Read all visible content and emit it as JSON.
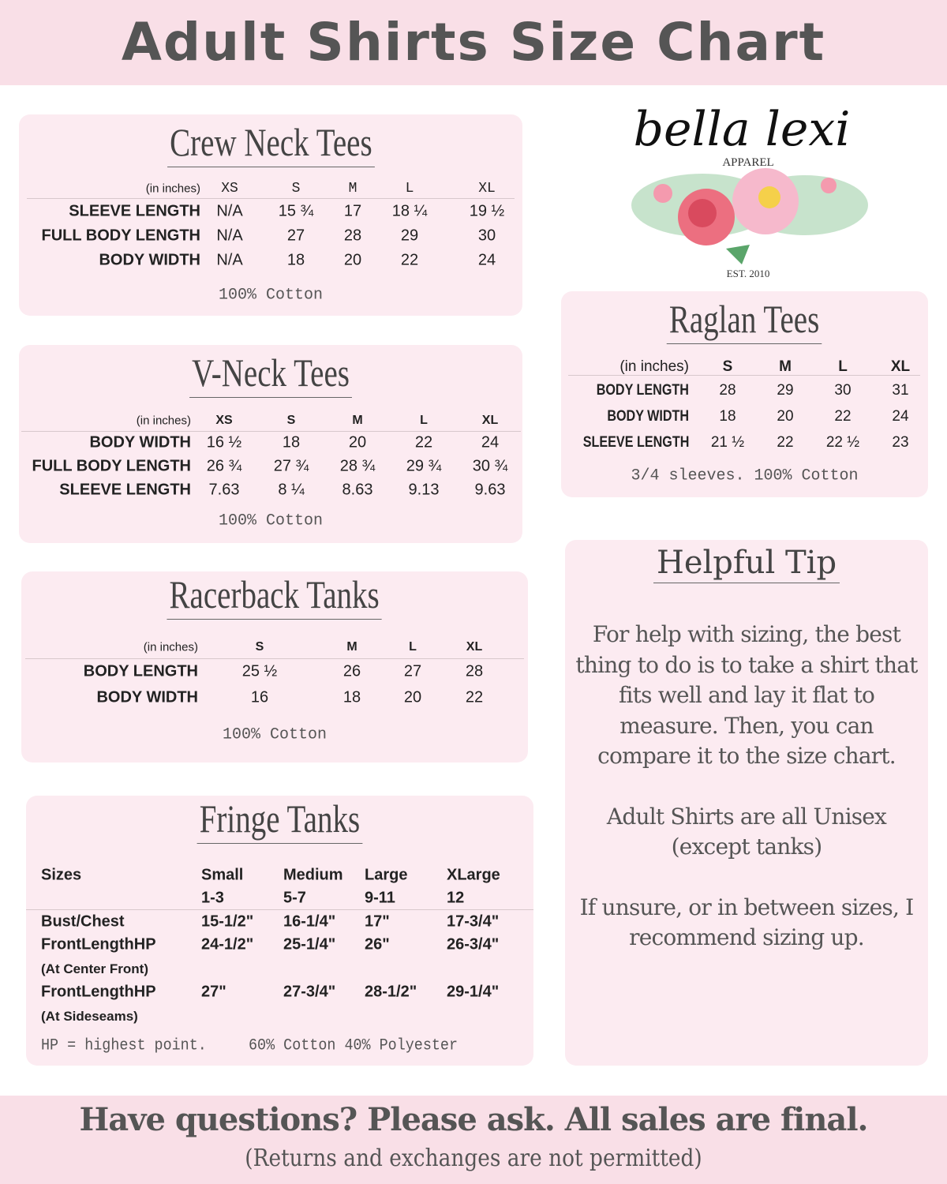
{
  "header": {
    "title": "Adult Shirts Size Chart"
  },
  "logo": {
    "brand": "bella lexi",
    "sub": "APPAREL",
    "est": "EST. 2010"
  },
  "crew": {
    "title": "Crew Neck Tees",
    "unit": "(in inches)",
    "sizes": [
      "XS",
      "S",
      "M",
      "L",
      "XL"
    ],
    "rows": [
      {
        "label": "SLEEVE LENGTH",
        "values": [
          "N/A",
          "15 ¾",
          "17",
          "18 ¼",
          "19 ½"
        ]
      },
      {
        "label": "FULL BODY LENGTH",
        "values": [
          "N/A",
          "27",
          "28",
          "29",
          "30"
        ]
      },
      {
        "label": "BODY WIDTH",
        "values": [
          "N/A",
          "18",
          "20",
          "22",
          "24"
        ]
      }
    ],
    "note": "100% Cotton"
  },
  "vneck": {
    "title": "V-Neck Tees",
    "unit": "(in inches)",
    "sizes": [
      "XS",
      "S",
      "M",
      "L",
      "XL"
    ],
    "rows": [
      {
        "label": "BODY WIDTH",
        "values": [
          "16 ½",
          "18",
          "20",
          "22",
          "24"
        ]
      },
      {
        "label": "FULL BODY LENGTH",
        "values": [
          "26 ¾",
          "27 ¾",
          "28 ¾",
          "29 ¾",
          "30 ¾"
        ]
      },
      {
        "label": "SLEEVE LENGTH",
        "values": [
          "7.63",
          "8 ¼",
          "8.63",
          "9.13",
          "9.63"
        ]
      }
    ],
    "note": "100% Cotton"
  },
  "racer": {
    "title": "Racerback Tanks",
    "unit": "(in inches)",
    "sizes": [
      "S",
      "M",
      "L",
      "XL"
    ],
    "rows": [
      {
        "label": "BODY LENGTH",
        "values": [
          "25 ½",
          "26",
          "27",
          "28"
        ]
      },
      {
        "label": "BODY WIDTH",
        "values": [
          "16",
          "18",
          "20",
          "22"
        ]
      }
    ],
    "note": "100% Cotton"
  },
  "raglan": {
    "title": "Raglan Tees",
    "unit": "(in inches)",
    "sizes": [
      "S",
      "M",
      "L",
      "XL"
    ],
    "rows": [
      {
        "label": "BODY LENGTH",
        "values": [
          "28",
          "29",
          "30",
          "31"
        ]
      },
      {
        "label": "BODY WIDTH",
        "values": [
          "18",
          "20",
          "22",
          "24"
        ]
      },
      {
        "label": "SLEEVE LENGTH",
        "values": [
          "21 ½",
          "22",
          "22 ½",
          "23"
        ]
      }
    ],
    "note": "3/4 sleeves. 100% Cotton"
  },
  "fringe": {
    "title": "Fringe Tanks",
    "sizes_label": "Sizes",
    "sizes": [
      {
        "name": "Small",
        "range": "1-3"
      },
      {
        "name": "Medium",
        "range": "5-7"
      },
      {
        "name": "Large",
        "range": "9-11"
      },
      {
        "name": "XLarge",
        "range": "12"
      }
    ],
    "rows": [
      {
        "label": "Bust/Chest",
        "sub": "",
        "values": [
          "15-1/2\"",
          "16-1/4\"",
          "17\"",
          "17-3/4\""
        ]
      },
      {
        "label": "FrontLengthHP",
        "sub": "(At Center Front)",
        "values": [
          "24-1/2\"",
          "25-1/4\"",
          "26\"",
          "26-3/4\""
        ]
      },
      {
        "label": "FrontLengthHP",
        "sub": "(At Sideseams)",
        "values": [
          "27\"",
          "27-3/4\"",
          "28-1/2\"",
          "29-1/4\""
        ]
      }
    ],
    "footnote": "HP = highest point.",
    "note": "60% Cotton 40% Polyester"
  },
  "tip": {
    "title": "Helpful Tip",
    "paragraphs": [
      "For help with sizing, the best thing to do is to take a shirt that fits well and lay it flat to measure.  Then, you can compare it to the size chart.",
      "Adult Shirts are all Unisex (except tanks)",
      "If unsure, or in between sizes, I recommend sizing up."
    ]
  },
  "footer": {
    "question": "Have questions? Please ask. All sales are final.",
    "returns": "(Returns and exchanges are not permitted)"
  },
  "colors": {
    "band": "#f9dfe7",
    "card": "#fcebf1",
    "title_text": "#555555"
  }
}
